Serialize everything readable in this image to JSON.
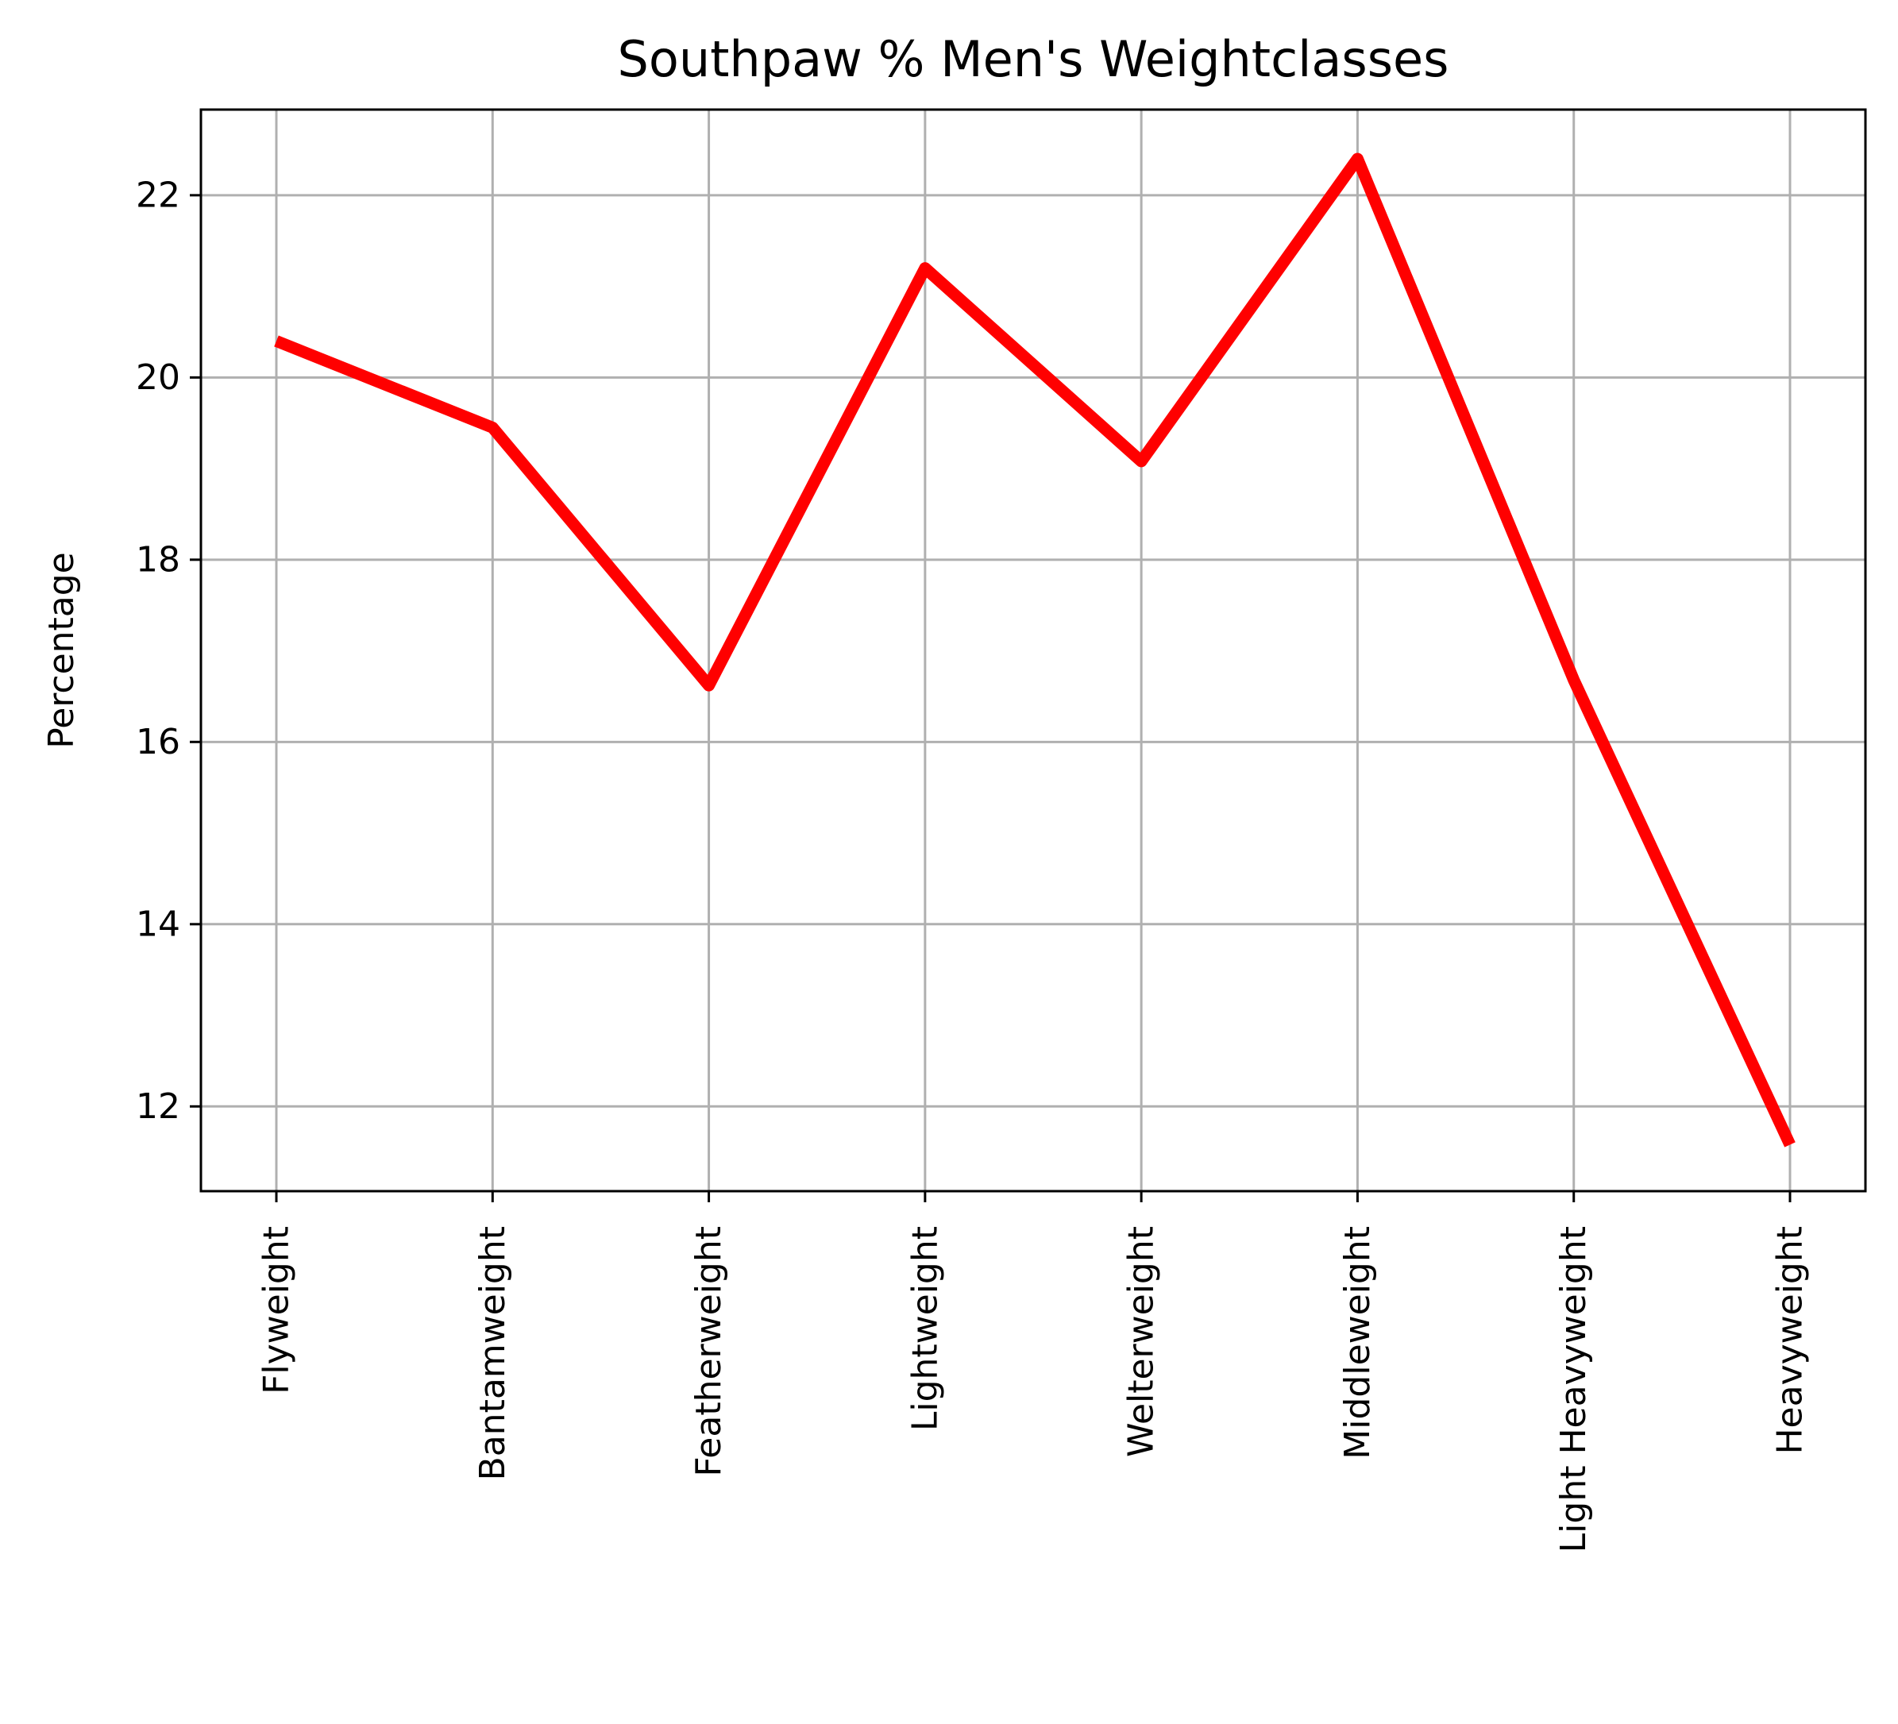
{
  "chart_data": {
    "type": "line",
    "title": "Southpaw % Men's Weightclasses",
    "xlabel": "",
    "ylabel": "Percentage",
    "categories": [
      "Flyweight",
      "Bantamweight",
      "Featherweight",
      "Lightweight",
      "Welterweight",
      "Middleweight",
      "Light Heavyweight",
      "Heavyweight"
    ],
    "series": [
      {
        "values": [
          20.4,
          19.45,
          16.62,
          21.2,
          19.08,
          22.4,
          16.68,
          11.58
        ]
      }
    ],
    "ylim": [
      11.07,
      22.94
    ],
    "yticks": [
      12,
      14,
      16,
      18,
      20,
      22
    ],
    "grid": true,
    "line_color": "#ff0000"
  }
}
